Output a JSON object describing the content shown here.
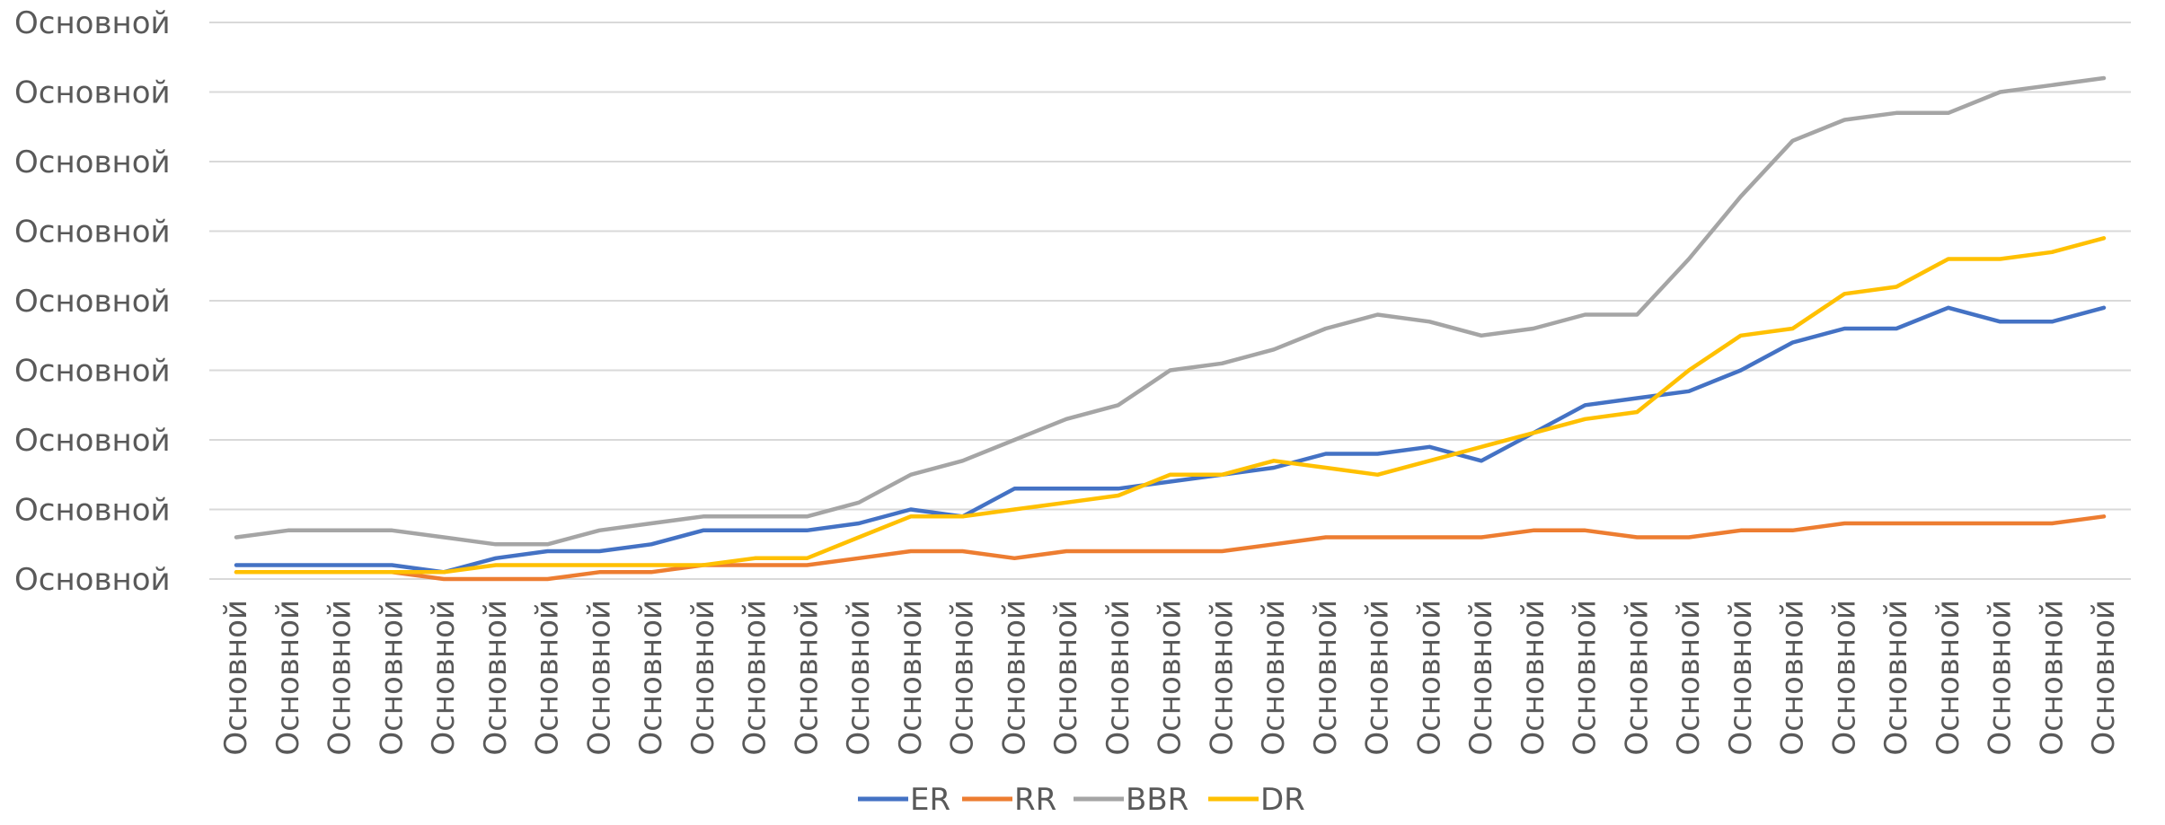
{
  "chart_data": {
    "type": "line",
    "title": "",
    "xlabel": "",
    "ylabel": "",
    "y_tick_labels": [
      "Основной",
      "Основной",
      "Основной",
      "Основной",
      "Основной",
      "Основной",
      "Основной",
      "Основной",
      "Основной"
    ],
    "y_ticks": [
      0,
      1,
      2,
      3,
      4,
      5,
      6,
      7,
      8
    ],
    "ylim": [
      0,
      8
    ],
    "grid": true,
    "legend_position": "bottom",
    "categories": [
      "Основной",
      "Основной",
      "Основной",
      "Основной",
      "Основной",
      "Основной",
      "Основной",
      "Основной",
      "Основной",
      "Основной",
      "Основной",
      "Основной",
      "Основной",
      "Основной",
      "Основной",
      "Основной",
      "Основной",
      "Основной",
      "Основной",
      "Основной",
      "Основной",
      "Основной",
      "Основной",
      "Основной",
      "Основной",
      "Основной",
      "Основной",
      "Основной",
      "Основной",
      "Основной",
      "Основной",
      "Основной",
      "Основной",
      "Основной",
      "Основной",
      "Основной",
      "Основной"
    ],
    "series": [
      {
        "name": "ER",
        "color": "#4472C4",
        "values": [
          0.2,
          0.2,
          0.2,
          0.2,
          0.1,
          0.3,
          0.4,
          0.4,
          0.5,
          0.7,
          0.7,
          0.7,
          0.8,
          1.0,
          0.9,
          1.3,
          1.3,
          1.3,
          1.4,
          1.5,
          1.6,
          1.8,
          1.8,
          1.9,
          1.7,
          2.1,
          2.5,
          2.6,
          2.7,
          3.0,
          3.4,
          3.6,
          3.6,
          3.9,
          3.7,
          3.7,
          3.9
        ]
      },
      {
        "name": "RR",
        "color": "#ED7D31",
        "values": [
          0.1,
          0.1,
          0.1,
          0.1,
          0.0,
          0.0,
          0.0,
          0.1,
          0.1,
          0.2,
          0.2,
          0.2,
          0.3,
          0.4,
          0.4,
          0.3,
          0.4,
          0.4,
          0.4,
          0.4,
          0.5,
          0.6,
          0.6,
          0.6,
          0.6,
          0.7,
          0.7,
          0.6,
          0.6,
          0.7,
          0.7,
          0.8,
          0.8,
          0.8,
          0.8,
          0.8,
          0.9
        ]
      },
      {
        "name": "BBR",
        "color": "#A5A5A5",
        "values": [
          0.6,
          0.7,
          0.7,
          0.7,
          0.6,
          0.5,
          0.5,
          0.7,
          0.8,
          0.9,
          0.9,
          0.9,
          1.1,
          1.5,
          1.7,
          2.0,
          2.3,
          2.5,
          3.0,
          3.1,
          3.3,
          3.6,
          3.8,
          3.7,
          3.5,
          3.6,
          3.8,
          3.8,
          4.6,
          5.5,
          6.3,
          6.6,
          6.7,
          6.7,
          7.0,
          7.1,
          7.2
        ]
      },
      {
        "name": "DR",
        "color": "#FFC000",
        "values": [
          0.1,
          0.1,
          0.1,
          0.1,
          0.1,
          0.2,
          0.2,
          0.2,
          0.2,
          0.2,
          0.3,
          0.3,
          0.6,
          0.9,
          0.9,
          1.0,
          1.1,
          1.2,
          1.5,
          1.5,
          1.7,
          1.6,
          1.5,
          1.7,
          1.9,
          2.1,
          2.3,
          2.4,
          3.0,
          3.5,
          3.6,
          4.1,
          4.2,
          4.6,
          4.6,
          4.7,
          4.9
        ]
      }
    ]
  }
}
